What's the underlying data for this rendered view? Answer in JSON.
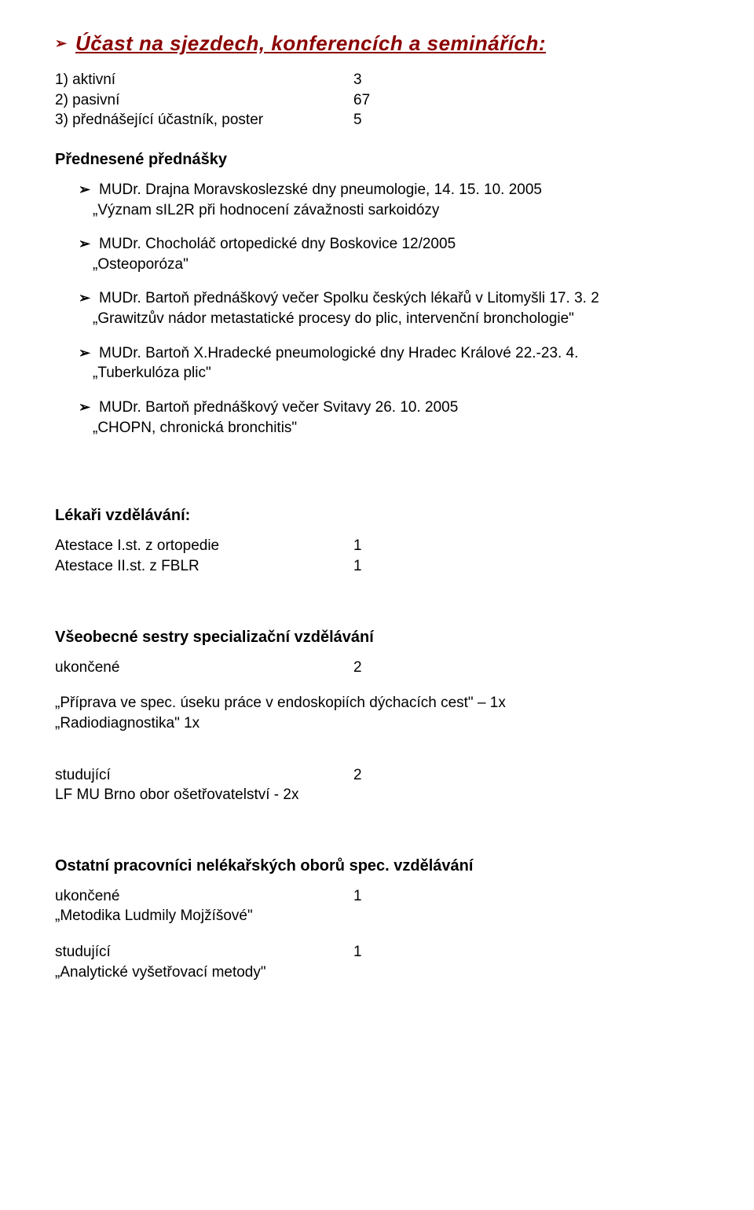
{
  "colors": {
    "heading": "#8b0000",
    "arrow_main": "#8b0000",
    "arrow_sub": "#000000",
    "text": "#000000",
    "background": "#ffffff"
  },
  "fonts": {
    "heading_family": "Arial Black, Impact",
    "heading_size_pt": 20,
    "heading_style": "italic bold underline",
    "body_family": "Arial",
    "body_size_pt": 14,
    "bold_sub_size_pt": 15
  },
  "heading": "Účast na sjezdech, konferencích a seminářích:",
  "participation": [
    {
      "label": "1) aktivní",
      "value": "3"
    },
    {
      "label": "2) pasivní",
      "value": "67"
    },
    {
      "label": "3) přednášející účastník, poster",
      "value": "5"
    }
  ],
  "lectures_heading": "Přednesené přednášky",
  "lectures": [
    {
      "lines": [
        "MUDr. Drajna Moravskoslezské dny pneumologie, 14. 15. 10. 2005",
        "„Význam sIL2R při hodnocení závažnosti sarkoidózy"
      ]
    },
    {
      "lines": [
        "MUDr. Chocholáč ortopedické dny Boskovice 12/2005",
        "„Osteoporóza\""
      ]
    },
    {
      "lines": [
        "MUDr. Bartoň přednáškový večer Spolku českých lékařů v Litomyšli 17. 3. 2",
        "„Grawitzův nádor metastatické procesy do plic, intervenční bronchologie\""
      ]
    },
    {
      "lines": [
        "MUDr. Bartoň X.Hradecké pneumologické dny Hradec Králové 22.-23. 4.",
        "„Tuberkulóza plic\""
      ]
    },
    {
      "lines": [
        "MUDr. Bartoň přednáškový večer Svitavy 26. 10. 2005",
        "„CHOPN, chronická bronchitis\""
      ]
    }
  ],
  "doctors_edu": {
    "heading": "Lékaři vzdělávání:",
    "rows": [
      {
        "label": "Atestace I.st. z ortopedie",
        "value": "1"
      },
      {
        "label": "Atestace II.st. z FBLR",
        "value": "1"
      }
    ]
  },
  "nurses_edu": {
    "heading": "Všeobecné sestry specializační vzdělávání",
    "completed": {
      "label": "ukončené",
      "value": "2"
    },
    "completed_items": [
      "„Příprava ve spec. úseku práce v endoskopiích dýchacích cest\" – 1x",
      "„Radiodiagnostika\" 1x"
    ],
    "studying": {
      "label": "studující",
      "value": "2"
    },
    "studying_items": [
      "LF MU Brno obor ošetřovatelství  - 2x"
    ]
  },
  "other_staff": {
    "heading": "Ostatní pracovníci nelékařských oborů spec. vzdělávání",
    "completed": {
      "label": "ukončené",
      "value": "1"
    },
    "completed_items": [
      "„Metodika Ludmily Mojžíšové\""
    ],
    "studying": {
      "label": "studující",
      "value": "1"
    },
    "studying_items": [
      "„Analytické vyšetřovací metody\""
    ]
  }
}
